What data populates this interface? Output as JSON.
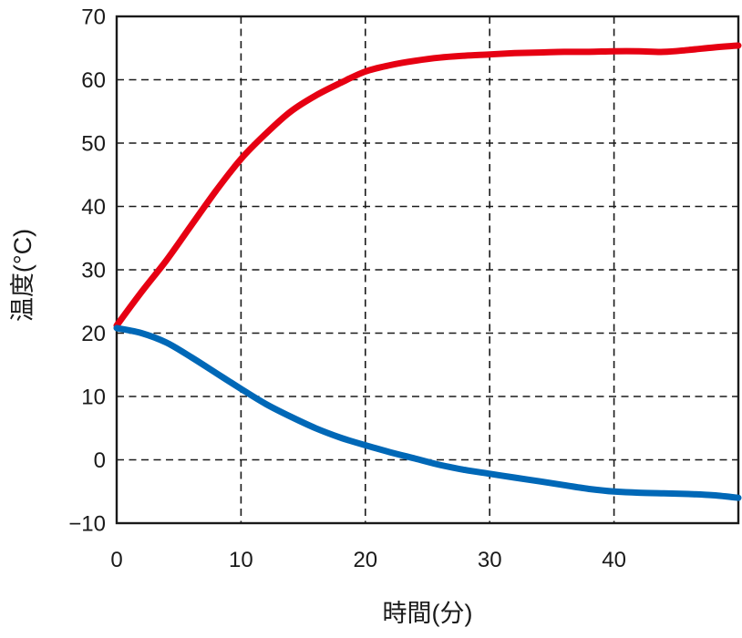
{
  "chart_data": {
    "type": "line",
    "title": "",
    "xlabel": "時間(分)",
    "ylabel": "温度(°C)",
    "xlim": [
      0,
      50
    ],
    "ylim": [
      -10,
      70
    ],
    "x_ticks": [
      0,
      10,
      20,
      30,
      40
    ],
    "x_tick_labels": [
      "0",
      "10",
      "20",
      "30",
      "40"
    ],
    "y_ticks": [
      70,
      60,
      50,
      40,
      30,
      20,
      10,
      0,
      -10
    ],
    "y_tick_labels": [
      "70",
      "60",
      "50",
      "40",
      "30",
      "20",
      "10",
      "0",
      "−10"
    ],
    "grid": "dashed",
    "legend": "none",
    "axis_color": "#1a1a1a",
    "series": [
      {
        "name": "heating-curve",
        "color": "#e60012",
        "x": [
          0,
          2,
          4,
          6,
          8,
          10,
          12,
          14,
          16,
          18,
          20,
          22,
          24,
          26,
          28,
          30,
          32,
          34,
          36,
          38,
          40,
          42,
          44,
          46,
          48,
          50
        ],
        "y": [
          21.2,
          26.5,
          31.5,
          37,
          42.5,
          47.5,
          51.5,
          55,
          57.5,
          59.5,
          61.3,
          62.3,
          63,
          63.5,
          63.8,
          64,
          64.2,
          64.3,
          64.4,
          64.4,
          64.5,
          64.5,
          64.4,
          64.7,
          65.1,
          65.4
        ]
      },
      {
        "name": "cooling-curve",
        "color": "#0068b7",
        "x": [
          0,
          2,
          4,
          6,
          8,
          10,
          12,
          14,
          16,
          18,
          20,
          22,
          24,
          26,
          28,
          30,
          32,
          34,
          36,
          38,
          40,
          42,
          44,
          46,
          48,
          50
        ],
        "y": [
          20.8,
          20.0,
          18.5,
          16.2,
          13.7,
          11.2,
          8.8,
          6.8,
          5.0,
          3.5,
          2.3,
          1.2,
          0.2,
          -0.8,
          -1.6,
          -2.2,
          -2.8,
          -3.4,
          -4.0,
          -4.6,
          -5.0,
          -5.2,
          -5.3,
          -5.4,
          -5.6,
          -6.0
        ]
      }
    ]
  }
}
